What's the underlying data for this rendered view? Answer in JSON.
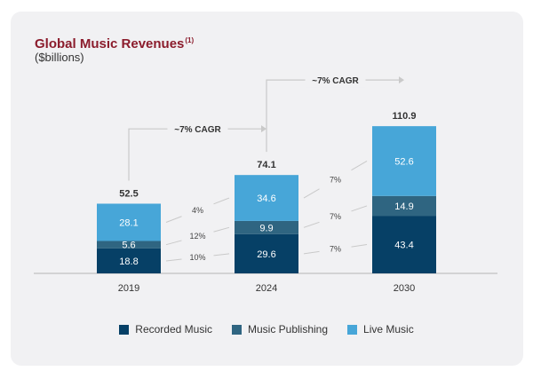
{
  "colors": {
    "recorded": "#064066",
    "publishing": "#2f6581",
    "live": "#47a6d8",
    "connector": "#c9c9c9",
    "text": "#333333",
    "title": "#8b1c2c"
  },
  "chart_data": {
    "type": "bar",
    "stacked": true,
    "title": "Global Music Revenues",
    "title_note": "(1)",
    "subtitle": "($billions)",
    "categories": [
      "2019",
      "2024",
      "2030"
    ],
    "series": [
      {
        "name": "Recorded Music",
        "key": "recorded",
        "values": [
          18.8,
          29.6,
          43.4
        ]
      },
      {
        "name": "Music Publishing",
        "key": "publishing",
        "values": [
          5.6,
          9.9,
          14.9
        ]
      },
      {
        "name": "Live Music",
        "key": "live",
        "values": [
          28.1,
          34.6,
          52.6
        ]
      }
    ],
    "totals": [
      "52.5",
      "74.1",
      "110.9"
    ],
    "growth_labels": [
      {
        "from": "2019",
        "to": "2024",
        "values": [
          "10%",
          "12%",
          "4%"
        ]
      },
      {
        "from": "2024",
        "to": "2030",
        "values": [
          "7%",
          "7%",
          "7%"
        ]
      }
    ],
    "cagr_labels": [
      {
        "from": "2019",
        "to": "2024",
        "text": "~7% CAGR"
      },
      {
        "from": "2024",
        "to": "2030",
        "text": "~7% CAGR"
      }
    ],
    "ylim": [
      0,
      115
    ],
    "legend_position": "bottom"
  }
}
